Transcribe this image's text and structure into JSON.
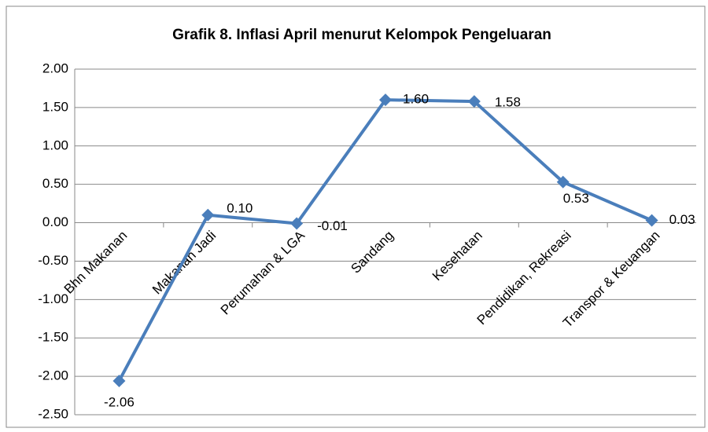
{
  "chart_data": {
    "type": "line",
    "title": "Grafik 8. Inflasi April menurut Kelompok Pengeluaran",
    "categories": [
      "Bhn Makanan",
      "Makanan Jadi",
      "Perumahan & LGA",
      "Sandang",
      "Kesehatan",
      "Pendidikan, Rekreasi",
      "Transpor & Keuangan"
    ],
    "series": [
      {
        "name": "Inflasi",
        "color": "#4a7ebb",
        "values": [
          -2.06,
          0.1,
          -0.01,
          1.6,
          1.58,
          0.53,
          0.03
        ],
        "value_labels": [
          "-2.06",
          "0.10",
          "-0.01",
          "1.60",
          "1.58",
          "0.53",
          "0.03"
        ]
      }
    ],
    "ylim": [
      -2.5,
      2
    ],
    "yticks": [
      {
        "value": -2.5,
        "label": "-2.50"
      },
      {
        "value": -2,
        "label": "-2.00"
      },
      {
        "value": -1.5,
        "label": "-1.50"
      },
      {
        "value": -1,
        "label": "-1.00"
      },
      {
        "value": -0.5,
        "label": "-0.50"
      },
      {
        "value": 0,
        "label": "0.00"
      },
      {
        "value": 0.5,
        "label": "0.50"
      },
      {
        "value": 1,
        "label": "1.00"
      },
      {
        "value": 1.5,
        "label": "1.50"
      },
      {
        "value": 2,
        "label": "2.00"
      }
    ],
    "grid": true
  }
}
